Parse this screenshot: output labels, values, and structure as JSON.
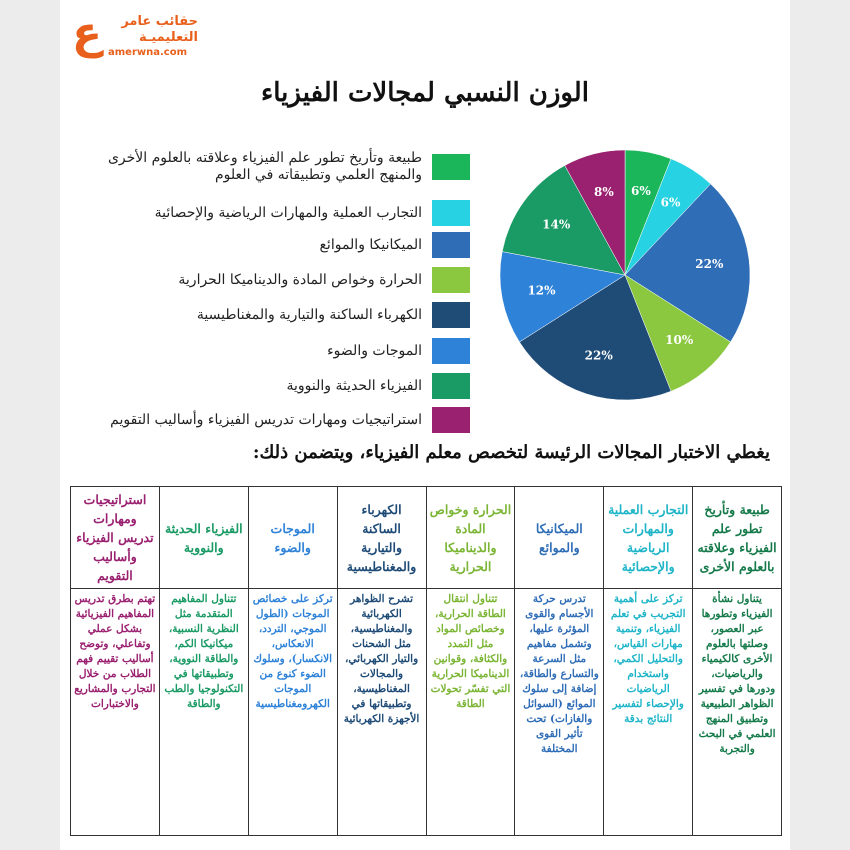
{
  "logo": {
    "mark": "ع",
    "line1": "حقائب عامر",
    "line2": "التعليميـة",
    "site": "amerwna.com"
  },
  "chart_data": {
    "type": "pie",
    "title": "الوزن النسبي لمجالات الفيزياء",
    "categories": [
      "طبيعة وتأريخ تطور علم الفيزياء وعلاقته بالعلوم الأخرى والمنهج العلمي وتطبيقاته في العلوم",
      "التجارب العملية والمهارات الرياضية والإحصائية",
      "الميكانيكا والموائع",
      "الحرارة وخواص المادة والديناميكا الحرارية",
      "الكهرباء الساكنة والتيارية والمغناطيسية",
      "الموجات والضوء",
      "الفيزياء الحديثة والنووية",
      "استراتيجيات ومهارات تدريس الفيزياء وأساليب التقويم"
    ],
    "values": [
      6,
      6,
      22,
      10,
      22,
      12,
      14,
      8
    ],
    "value_labels": [
      "6%",
      "6%",
      "22%",
      "10%",
      "22%",
      "12%",
      "14%",
      "8%"
    ],
    "colors": [
      "#1bb65a",
      "#27d2e2",
      "#2f6db6",
      "#8bc83f",
      "#1f4b77",
      "#2e82d8",
      "#1a9a64",
      "#9a2070"
    ]
  },
  "table": {
    "heading": "يغطي الاختبار المجالات الرئيسة لتخصص معلم الفيزياء، ويتضمن ذلك:",
    "columns": [
      {
        "header": "طبيعة وتأريخ تطور علم الفيزياء وعلاقته بالعلوم الأخرى",
        "body": "يتناول نشأة الفيزياء وتطورها عبر العصور، وصلتها بالعلوم الأخرى كالكيمياء والرياضيات، ودورها في تفسير الظواهر الطبيعية وتطبيق المنهج العلمي في البحث والتجربة",
        "color": "#157a4a"
      },
      {
        "header": "التجارب العملية والمهارات الرياضية والإحصائية",
        "body": "تركز على أهمية التجريب في تعلم الفيزياء، وتنمية مهارات القياس، والتحليل الكمي، واستخدام الرياضيات والإحصاء لتفسير النتائج بدقة",
        "color": "#1fb5c8"
      },
      {
        "header": "الميكانيكا والموائع",
        "body": "تدرس حركة الأجسام والقوى المؤثرة عليها، وتشمل مفاهيم مثل السرعة والتسارع والطاقة، إضافة إلى سلوك الموائع (السوائل والغازات) تحت تأثير القوى المختلفة",
        "color": "#2f6db6"
      },
      {
        "header": "الحرارة وخواص المادة والديناميكا الحرارية",
        "body": "تتناول انتقال الطاقة الحرارية، وخصائص المواد مثل التمدد والكثافة، وقوانين الديناميكا الحرارية التي تفسّر تحولات الطاقة",
        "color": "#7bb534"
      },
      {
        "header": "الكهرباء الساكنة والتيارية والمغناطيسية",
        "body": "تشرح الظواهر الكهربائية والمغناطيسية، مثل الشحنات والتيار الكهربائي، والمجالات المغناطيسية، وتطبيقاتها في الأجهزة الكهربائية",
        "color": "#1f4b77"
      },
      {
        "header": "الموجات والضوء",
        "body": "تركز على خصائص الموجات (الطول الموجي، التردد، الانعكاس، الانكسار)، وسلوك الضوء كنوع من الموجات الكهرومغناطيسية",
        "color": "#2e82d8"
      },
      {
        "header": "الفيزياء الحديثة والنووية",
        "body": "تتناول المفاهيم المتقدمة مثل النظرية النسبية، ميكانيكا الكم، والطاقة النووية، وتطبيقاتها في التكنولوجيا والطب والطاقة",
        "color": "#1a9a64"
      },
      {
        "header": "استراتيجيات ومهارات تدريس الفيزياء وأساليب التقويم",
        "body": "تهتم بطرق تدريس المفاهيم الفيزيائية بشكل عملي وتفاعلي، وتوضح أساليب تقييم فهم الطلاب من خلال التجارب والمشاريع والاختبارات",
        "color": "#9a2070"
      }
    ]
  }
}
